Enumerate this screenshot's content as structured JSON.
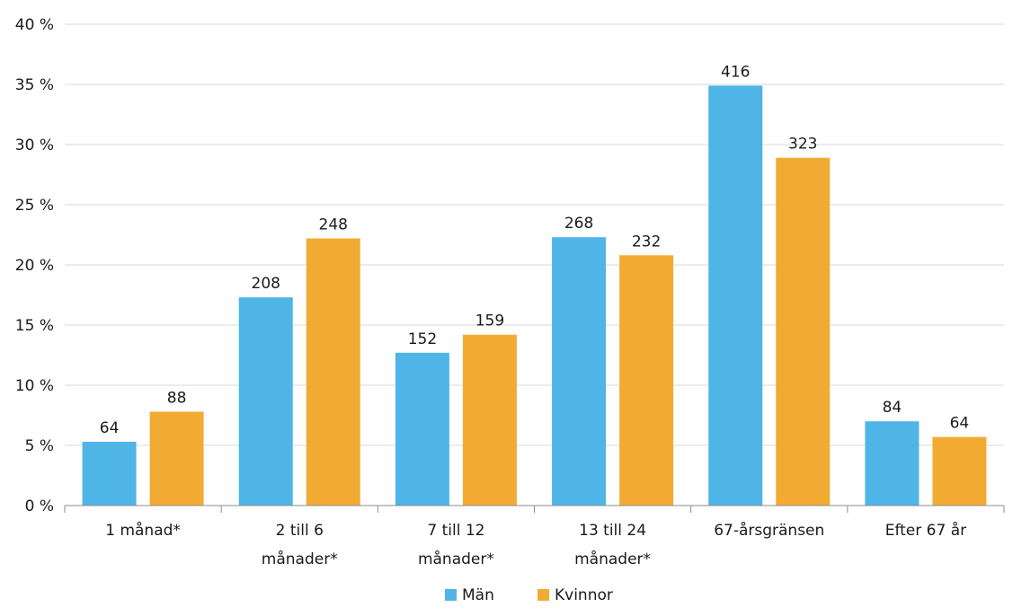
{
  "chart_data": {
    "type": "bar",
    "categories": [
      [
        "1 månad*"
      ],
      [
        "2 till 6",
        "månader*"
      ],
      [
        "7 till 12",
        "månader*"
      ],
      [
        "13 till 24",
        "månader*"
      ],
      [
        "67-årsgränsen"
      ],
      [
        "Efter 67 år"
      ]
    ],
    "series": [
      {
        "name": "Män",
        "color": "#4eb5e6",
        "values": [
          5.3,
          17.3,
          12.7,
          22.3,
          34.9,
          7.0
        ],
        "labels": [
          "64",
          "208",
          "152",
          "268",
          "416",
          "84"
        ]
      },
      {
        "name": "Kvinnor",
        "color": "#f2ab32",
        "values": [
          7.8,
          22.2,
          14.2,
          20.8,
          28.9,
          5.7
        ],
        "labels": [
          "88",
          "248",
          "159",
          "232",
          "323",
          "64"
        ]
      }
    ],
    "yticks": [
      "0 %",
      "5 %",
      "10 %",
      "15 %",
      "20 %",
      "25 %",
      "30 %",
      "35 %",
      "40 %"
    ],
    "ylim": [
      0,
      40
    ],
    "ystep": 5,
    "grid": true,
    "legend_position": "bottom"
  }
}
